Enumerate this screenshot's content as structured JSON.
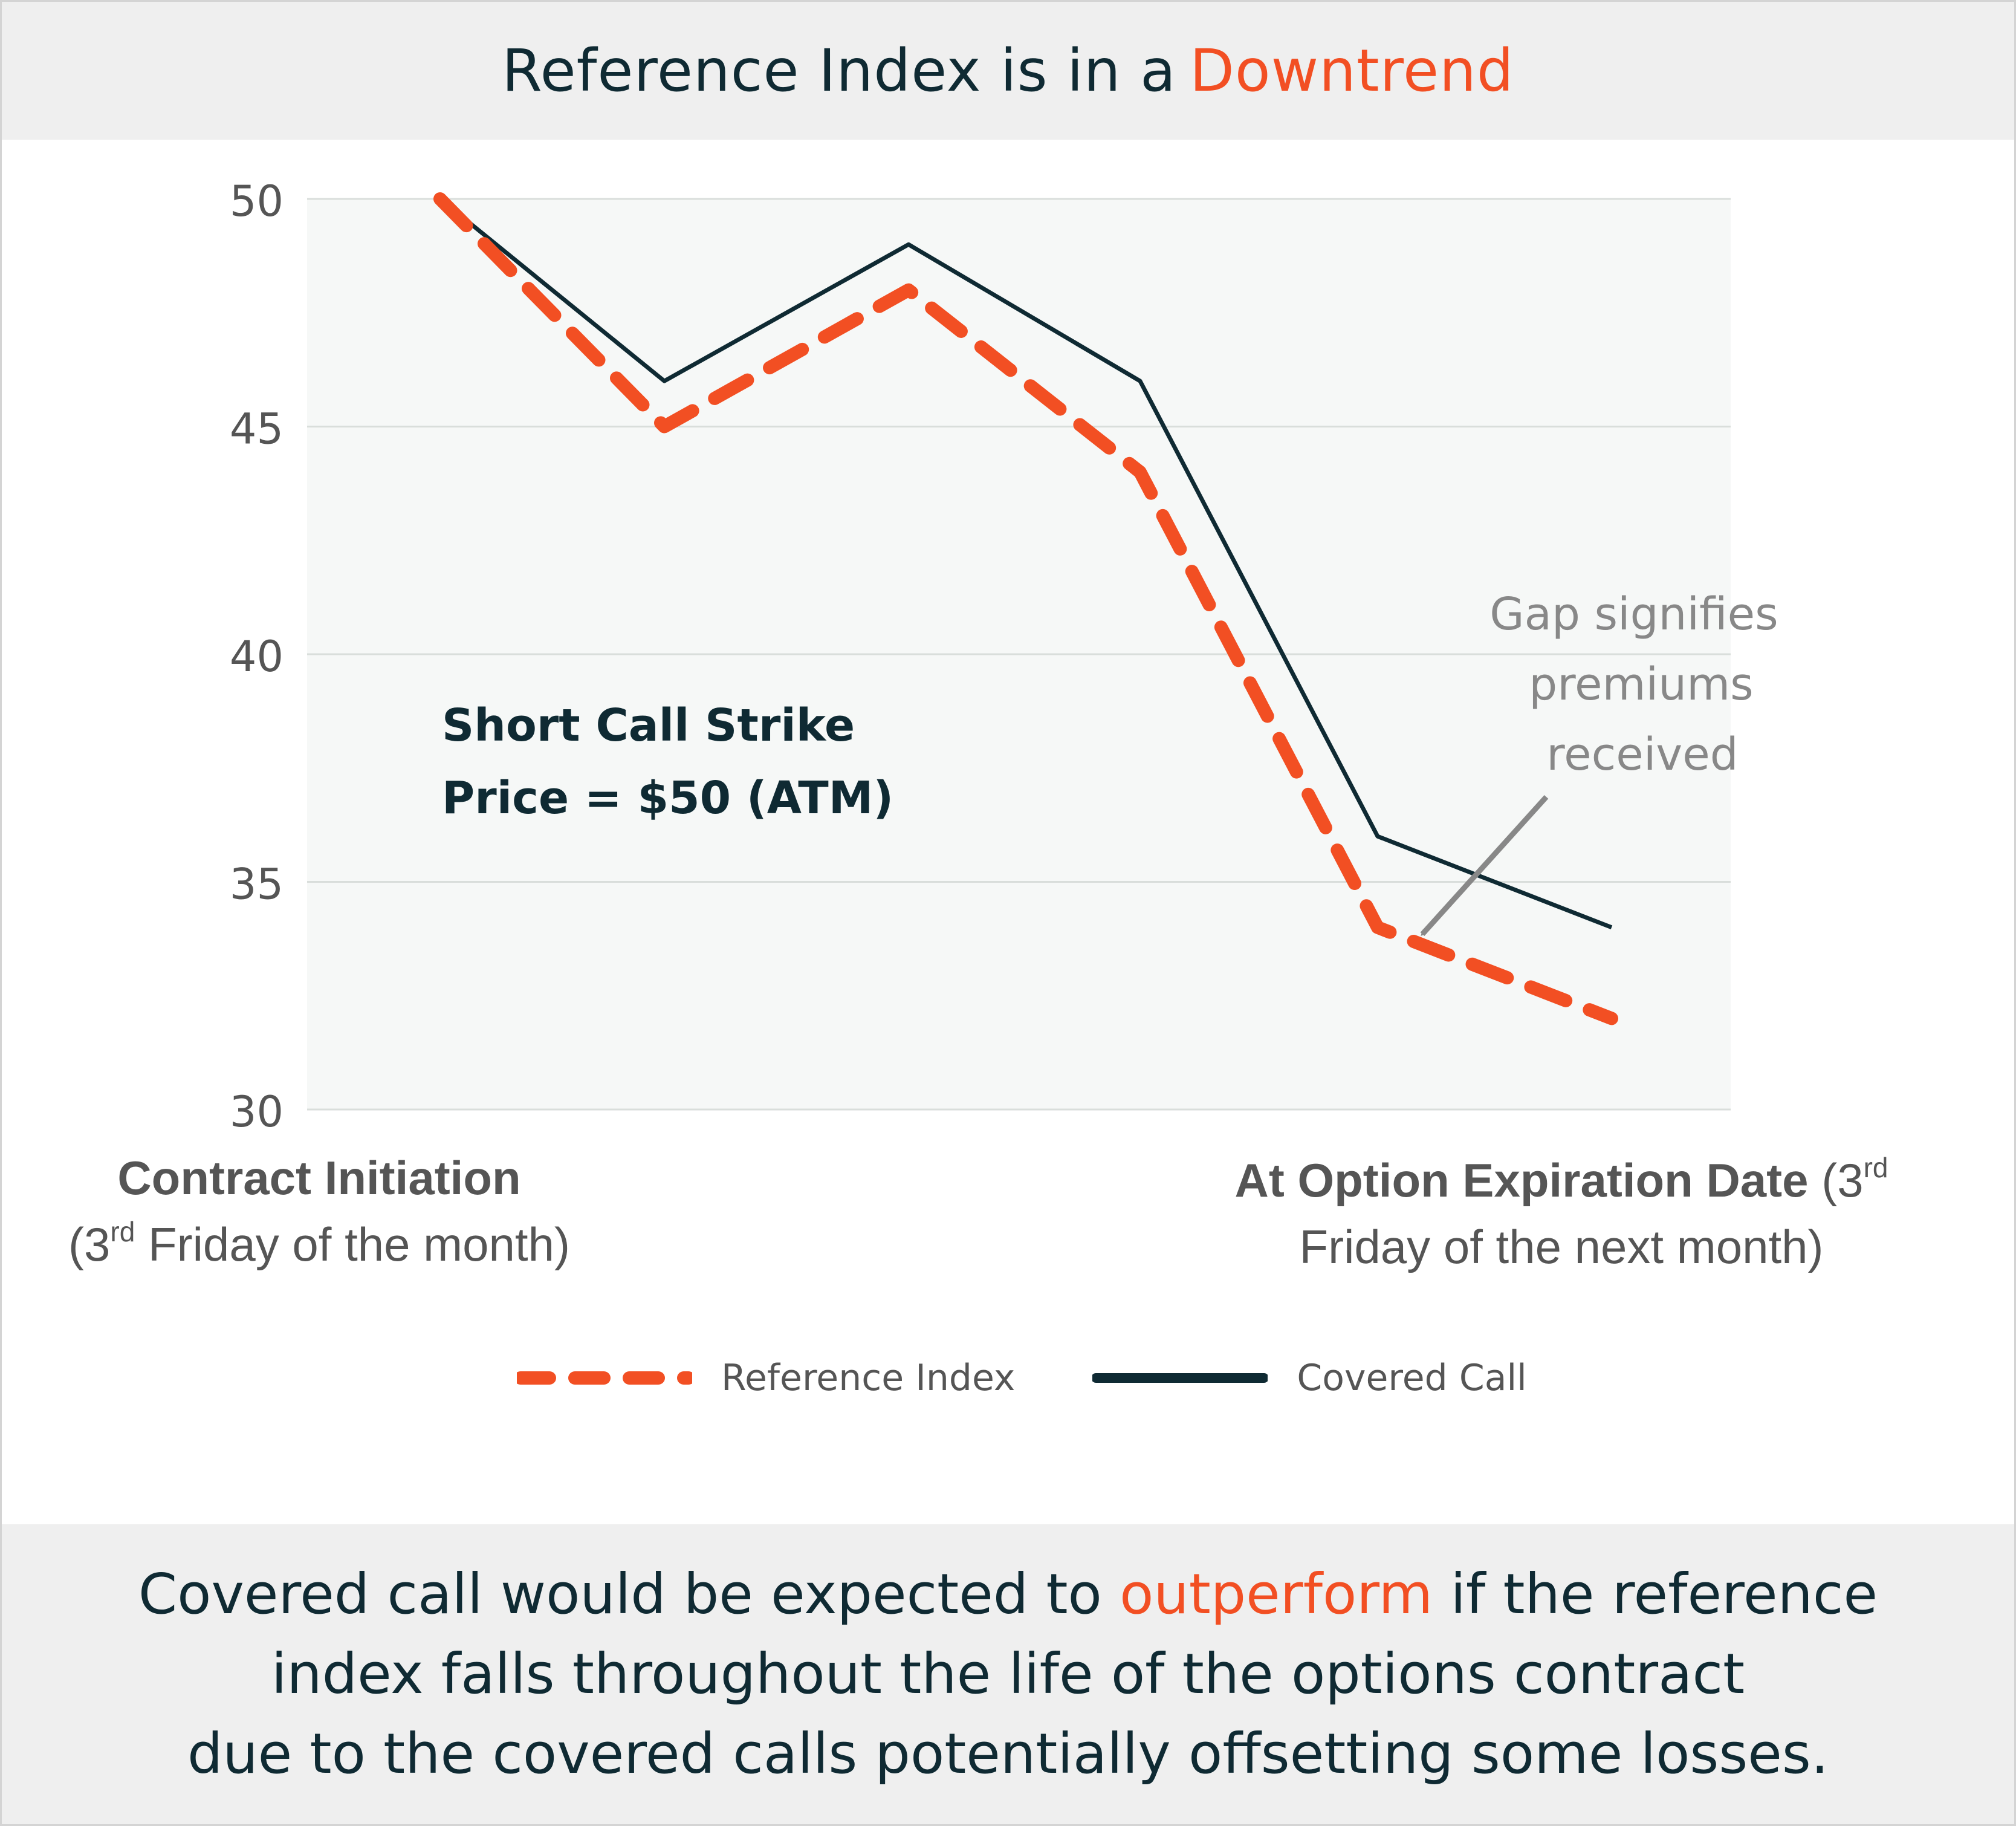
{
  "header": {
    "title_main": "Reference Index is in a",
    "title_accent": "Downtrend"
  },
  "colors": {
    "accent": "#f24f23",
    "dark": "#0f2a33",
    "gray_text": "#555555",
    "annotation_gray": "#888888",
    "plot_bg": "#f6f8f7",
    "grid": "#d9dedb"
  },
  "chart_data": {
    "type": "line",
    "title": "Reference Index is in a Downtrend",
    "x": [
      0,
      1,
      2,
      3,
      4,
      5
    ],
    "ylim": [
      30,
      50
    ],
    "yticks": [
      30,
      35,
      40,
      45,
      50
    ],
    "grid": true,
    "series": [
      {
        "name": "Reference Index",
        "style": "dashed",
        "color": "#f24f23",
        "values": [
          50,
          45,
          48,
          44,
          34,
          32
        ]
      },
      {
        "name": "Covered Call",
        "style": "solid",
        "color": "#0f2a33",
        "values": [
          50,
          46,
          49,
          46,
          36,
          34
        ]
      }
    ],
    "annotations": {
      "strike_line1": "Short Call Strike",
      "strike_line2": "Price = $50 (ATM)",
      "gap_line1": "Gap signifies",
      "gap_line2": "premiums",
      "gap_line3": "received"
    },
    "legend_position": "bottom-center"
  },
  "xaxis": {
    "start_bold": "Contract Initiation",
    "start_paren_open": "(3",
    "start_sup": "rd",
    "start_rest": " Friday of the month)",
    "end_bold": "At Option Expiration Date",
    "end_paren_open": " (3",
    "end_sup": "rd",
    "end_rest": "Friday of the next month)"
  },
  "footer": {
    "line1_before": "Covered call would be expected to ",
    "line1_accent": "outperform",
    "line1_after": " if the reference",
    "line2": "index falls throughout the life of the options contract",
    "line3": "due to the covered calls potentially offsetting some losses."
  }
}
